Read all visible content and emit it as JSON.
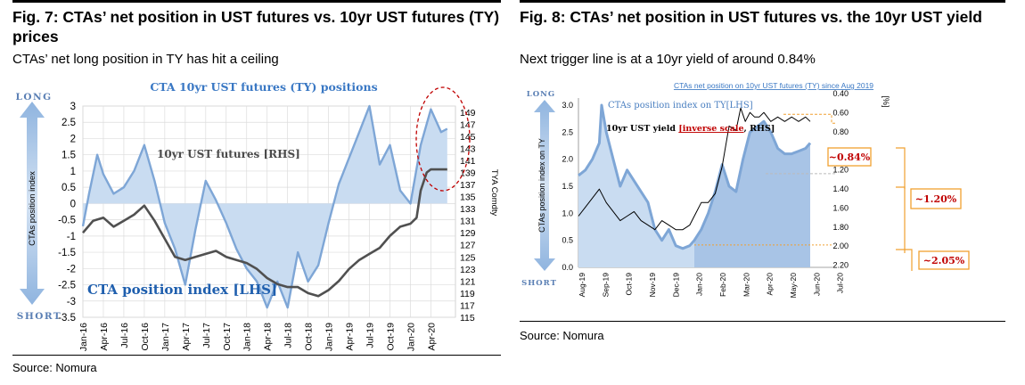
{
  "fig7": {
    "title": "Fig. 7: CTAs’ net position in UST futures vs. 10yr UST futures (TY) prices",
    "subtitle": "CTAs’ net long position in TY has hit a ceiling",
    "source": "Source: Nomura",
    "arrow_top": "LONG",
    "arrow_bottom": "SHORT",
    "rhs_axis_label": "TYA Comdty",
    "annotation_rhs": "10yr UST futures [RHS]",
    "annotation_lhs": "CTA position index [LHS]",
    "highlight_ellipse": true
  },
  "fig8": {
    "title": "Fig. 8: CTAs’ net position in UST futures vs. the 10yr UST yield",
    "subtitle": "Next trigger line is at a 10yr yield of around 0.84%",
    "source": "Source: Nomura",
    "arrow_top": "LONG",
    "arrow_bottom": "SHORT",
    "annotation_cta": "CTAs position index on TY[LHS]",
    "annotation_yield_prefix": "10yr UST yield ",
    "annotation_yield_red": "[inverse scale",
    "annotation_yield_suffix": ", RHS]",
    "callouts": [
      "~0.84%",
      "~1.20%",
      "~2.05%"
    ]
  },
  "chart_data": [
    {
      "type": "area",
      "title": "CTA 10yr UST futures (TY) positions",
      "ylabel": "CTAs position index",
      "y2label": "TYA Comdty",
      "ylim": [
        -3.5,
        3
      ],
      "y_ticks": [
        "3",
        "2.5",
        "2",
        "1.5",
        "1",
        "0.5",
        "0",
        "-0.5",
        "-1",
        "-1.5",
        "-2",
        "-2.5",
        "-3",
        "-3.5"
      ],
      "y2lim": [
        115,
        150
      ],
      "y2_ticks": [
        "149",
        "147",
        "145",
        "143",
        "141",
        "139",
        "137",
        "135",
        "133",
        "131",
        "129",
        "127",
        "125",
        "123",
        "121",
        "119",
        "117",
        "115"
      ],
      "x_ticks": [
        "Jan-16",
        "Apr-16",
        "Jul-16",
        "Oct-16",
        "Jan-17",
        "Apr-17",
        "Jul-17",
        "Oct-17",
        "Jan-18",
        "Apr-18",
        "Jul-18",
        "Oct-18",
        "Jan-19",
        "Apr-19",
        "Jul-19",
        "Oct-19",
        "Jan-20",
        "Apr-20"
      ],
      "grid": true,
      "colors": {
        "position_line": "#7ea6d6",
        "position_fill": "#c9dcf1",
        "price_line": "#505050",
        "title": "#3a78c4"
      },
      "series": [
        {
          "name": "CTA position index [LHS]",
          "axis": "left",
          "t": [
            0,
            0.3,
            0.7,
            1.0,
            1.5,
            2.0,
            2.5,
            3.0,
            3.5,
            4.0,
            4.5,
            5.0,
            5.5,
            6.0,
            6.5,
            7.0,
            7.5,
            8.0,
            8.5,
            9.0,
            9.5,
            10.0,
            10.5,
            11.0,
            11.5,
            12.0,
            12.5,
            13.0,
            13.5,
            14.0,
            14.5,
            15.0,
            15.5,
            16.0,
            16.5,
            17.0,
            17.5,
            17.8
          ],
          "values": [
            -0.7,
            0.3,
            1.5,
            0.9,
            0.3,
            0.5,
            1.0,
            1.8,
            0.7,
            -0.6,
            -1.4,
            -2.5,
            -0.8,
            0.7,
            0.1,
            -0.6,
            -1.4,
            -2.0,
            -2.4,
            -3.2,
            -2.4,
            -3.2,
            -1.5,
            -2.4,
            -1.9,
            -0.6,
            0.6,
            1.4,
            2.2,
            3.0,
            1.2,
            1.8,
            0.4,
            0.0,
            1.8,
            2.9,
            2.2,
            2.3
          ]
        },
        {
          "name": "10yr UST futures [RHS]",
          "axis": "right",
          "t": [
            0,
            0.5,
            1.0,
            1.5,
            2.0,
            2.5,
            3.0,
            3.5,
            4.0,
            4.5,
            5.0,
            5.5,
            6.0,
            6.5,
            7.0,
            7.5,
            8.0,
            8.5,
            9.0,
            9.5,
            10.0,
            10.5,
            11.0,
            11.5,
            12.0,
            12.5,
            13.0,
            13.5,
            14.0,
            14.5,
            15.0,
            15.5,
            16.0,
            16.3,
            16.5,
            16.8,
            17.0,
            17.5,
            17.8
          ],
          "values": [
            129,
            131,
            131.5,
            130,
            131,
            132,
            133.5,
            131,
            128,
            125,
            124.5,
            125,
            125.5,
            126,
            125,
            124.5,
            124,
            123,
            121.5,
            120.5,
            120,
            120,
            119,
            118.5,
            119.5,
            121,
            123,
            124.5,
            125.5,
            126.5,
            128.5,
            130,
            130.5,
            131.5,
            136,
            139,
            139.5,
            139.5,
            139.5
          ]
        }
      ]
    },
    {
      "type": "area",
      "title": "CTAs net position on 10yr UST futures (TY) since Aug 2019",
      "ylabel": "CTAs position index on TY",
      "y2label": "[%]",
      "ylim": [
        0,
        3.0
      ],
      "y_ticks": [
        "3.0",
        "2.5",
        "2.0",
        "1.5",
        "1.0",
        "0.5",
        "0.0"
      ],
      "y2lim": [
        0.4,
        2.2
      ],
      "y2_inverse": true,
      "y2_ticks": [
        "0.40",
        "0.60",
        "0.80",
        "1.00",
        "1.20",
        "1.40",
        "1.60",
        "1.80",
        "2.00",
        "2.20"
      ],
      "x_ticks": [
        "Aug-19",
        "Sep-19",
        "Oct-19",
        "Nov-19",
        "Dec-19",
        "Jan-20",
        "Feb-20",
        "Mar-20",
        "Apr-20",
        "May-20",
        "Jun-20",
        "Jul-20"
      ],
      "grid": false,
      "colors": {
        "position_line": "#7ea6d6",
        "position_fill": "#c9dcf1",
        "position_fill_dark": "#a8c4e6",
        "yield_line": "#000000",
        "callout_border": "#f0a030",
        "callout_text": "#c00000"
      },
      "series": [
        {
          "name": "CTAs position index on TY[LHS]",
          "axis": "left",
          "t": [
            0,
            0.3,
            0.6,
            0.9,
            1.0,
            1.2,
            1.5,
            1.8,
            2.1,
            2.4,
            2.7,
            3.0,
            3.3,
            3.6,
            3.9,
            4.2,
            4.5,
            4.8,
            5.0,
            5.3,
            5.6,
            5.9,
            6.2,
            6.5,
            6.8,
            7.1,
            7.4,
            7.7,
            8.0,
            8.3,
            8.6,
            8.9,
            9.2,
            9.5,
            9.8,
            10.0
          ],
          "values": [
            1.7,
            1.8,
            2.0,
            2.3,
            3.0,
            2.5,
            2.0,
            1.5,
            1.8,
            1.6,
            1.4,
            1.2,
            0.7,
            0.5,
            0.7,
            0.4,
            0.35,
            0.4,
            0.5,
            0.7,
            1.0,
            1.4,
            1.9,
            1.5,
            1.4,
            2.0,
            2.5,
            2.6,
            2.7,
            2.5,
            2.2,
            2.1,
            2.1,
            2.15,
            2.2,
            2.3
          ]
        },
        {
          "name": "10yr UST yield [inverse scale, RHS]",
          "axis": "right",
          "t": [
            0,
            0.3,
            0.6,
            0.9,
            1.2,
            1.5,
            1.8,
            2.1,
            2.4,
            2.7,
            3.0,
            3.3,
            3.6,
            3.9,
            4.2,
            4.5,
            4.8,
            5.0,
            5.3,
            5.6,
            5.9,
            6.2,
            6.5,
            6.8,
            7.0,
            7.2,
            7.4,
            7.6,
            7.8,
            8.0,
            8.3,
            8.6,
            8.9,
            9.2,
            9.5,
            9.8,
            10.0
          ],
          "values": [
            1.75,
            1.65,
            1.55,
            1.45,
            1.6,
            1.7,
            1.8,
            1.75,
            1.7,
            1.8,
            1.85,
            1.9,
            1.8,
            1.85,
            1.9,
            1.9,
            1.85,
            1.75,
            1.6,
            1.6,
            1.5,
            1.2,
            0.75,
            0.8,
            0.55,
            0.7,
            0.6,
            0.65,
            0.65,
            0.6,
            0.7,
            0.65,
            0.7,
            0.65,
            0.7,
            0.65,
            0.7
          ]
        }
      ],
      "trigger_levels": [
        0.84,
        1.2,
        2.05
      ]
    }
  ]
}
